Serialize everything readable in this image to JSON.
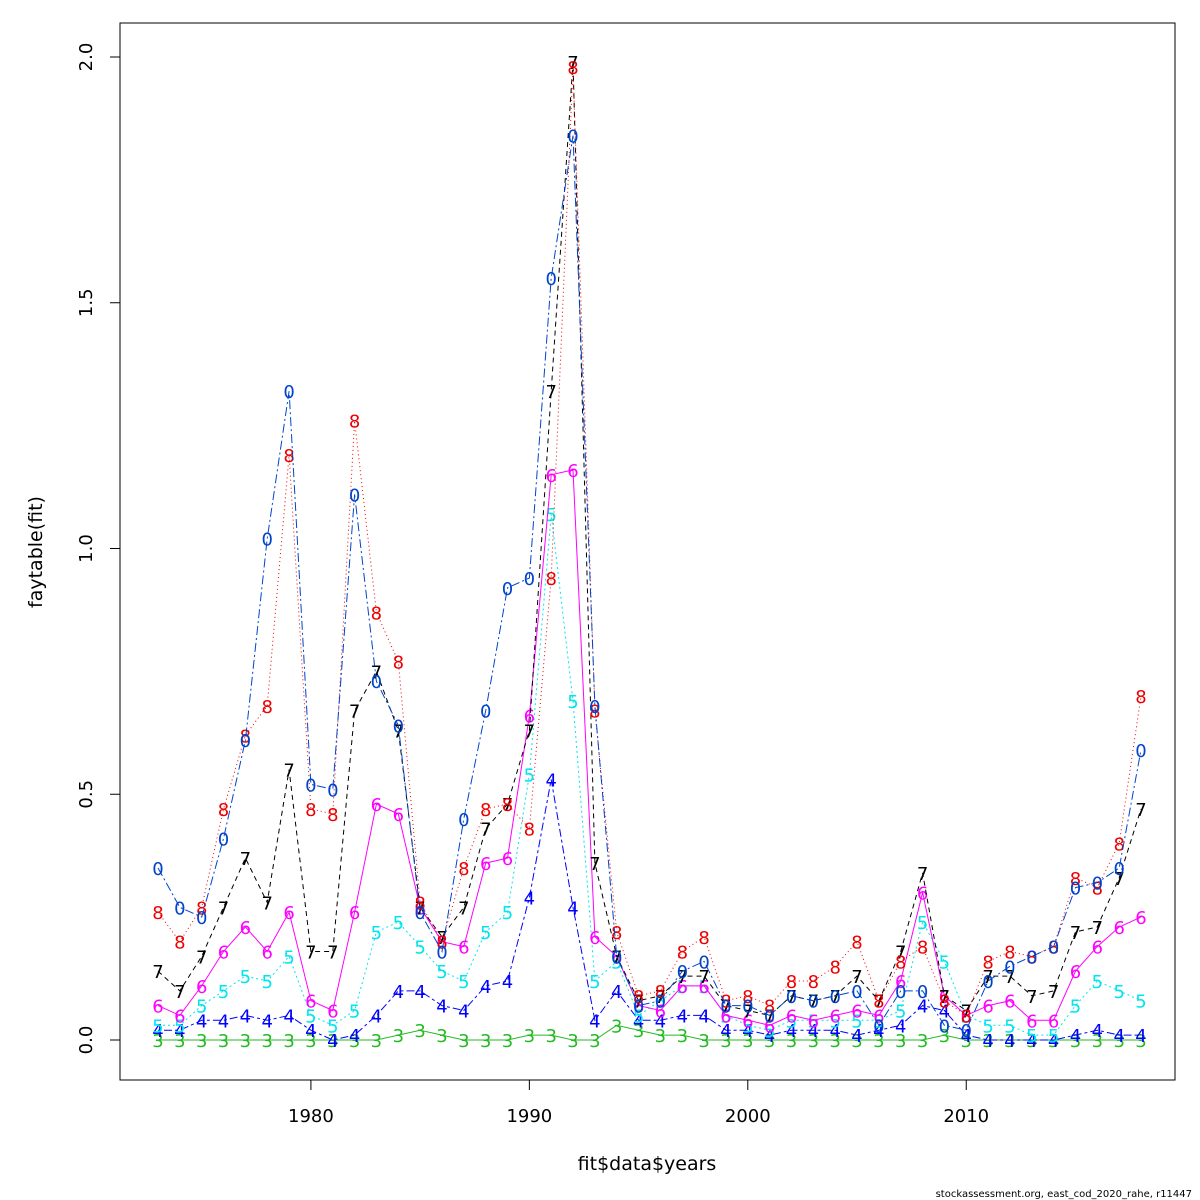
{
  "chart_data": {
    "type": "line",
    "xlabel": "fit$data$years",
    "ylabel": "faytable(fit)",
    "xlim": [
      1973,
      2018
    ],
    "ylim": [
      0,
      2.0
    ],
    "x_ticks": [
      1980,
      1990,
      2000,
      2010
    ],
    "y_ticks": [
      0.0,
      0.5,
      1.0,
      1.5,
      2.0
    ],
    "y_tick_labels": [
      "0.0",
      "0.5",
      "1.0",
      "1.5",
      "2.0"
    ],
    "grid": false,
    "legend": "none",
    "x": [
      1973,
      1974,
      1975,
      1976,
      1977,
      1978,
      1979,
      1980,
      1981,
      1982,
      1983,
      1984,
      1985,
      1986,
      1987,
      1988,
      1989,
      1990,
      1991,
      1992,
      1993,
      1994,
      1995,
      1996,
      1997,
      1998,
      1999,
      2000,
      2001,
      2002,
      2003,
      2004,
      2005,
      2006,
      2007,
      2008,
      2009,
      2010,
      2011,
      2012,
      2013,
      2014,
      2015,
      2016,
      2017,
      2018
    ],
    "series": [
      {
        "label": "3",
        "color": "#22bb22",
        "dash": "",
        "values": [
          0.0,
          0.0,
          0.0,
          0.0,
          0.0,
          0.0,
          0.0,
          0.0,
          0.0,
          0.0,
          0.0,
          0.01,
          0.02,
          0.01,
          0.0,
          0.0,
          0.0,
          0.01,
          0.01,
          0.0,
          0.0,
          0.03,
          0.02,
          0.01,
          0.01,
          0.0,
          0.0,
          0.0,
          0.0,
          0.0,
          0.0,
          0.0,
          0.0,
          0.0,
          0.0,
          0.0,
          0.01,
          0.0,
          0.0,
          0.0,
          0.0,
          0.0,
          0.0,
          0.0,
          0.0,
          0.0
        ]
      },
      {
        "label": "4",
        "color": "#0000ff",
        "dash": "3,3,8,3",
        "values": [
          0.02,
          0.02,
          0.04,
          0.04,
          0.05,
          0.04,
          0.05,
          0.02,
          0.0,
          0.01,
          0.05,
          0.1,
          0.1,
          0.07,
          0.06,
          0.11,
          0.12,
          0.29,
          0.53,
          0.27,
          0.04,
          0.1,
          0.04,
          0.04,
          0.05,
          0.05,
          0.02,
          0.02,
          0.01,
          0.02,
          0.02,
          0.02,
          0.01,
          0.02,
          0.03,
          0.07,
          0.06,
          0.01,
          0.0,
          0.0,
          0.0,
          0.0,
          0.01,
          0.02,
          0.01,
          0.01
        ]
      },
      {
        "label": "5",
        "color": "#00e5ee",
        "dash": "2,3",
        "values": [
          0.03,
          0.03,
          0.07,
          0.1,
          0.13,
          0.12,
          0.17,
          0.05,
          0.03,
          0.06,
          0.22,
          0.24,
          0.19,
          0.14,
          0.12,
          0.22,
          0.26,
          0.54,
          1.07,
          0.69,
          0.12,
          0.16,
          0.05,
          0.08,
          0.11,
          0.11,
          0.05,
          0.03,
          0.02,
          0.04,
          0.04,
          0.04,
          0.04,
          0.04,
          0.06,
          0.24,
          0.16,
          0.05,
          0.03,
          0.03,
          0.01,
          0.01,
          0.07,
          0.12,
          0.1,
          0.08
        ]
      },
      {
        "label": "6",
        "color": "#ff00ff",
        "dash": "",
        "values": [
          0.07,
          0.05,
          0.11,
          0.18,
          0.23,
          0.18,
          0.26,
          0.08,
          0.06,
          0.26,
          0.48,
          0.46,
          0.27,
          0.2,
          0.19,
          0.36,
          0.37,
          0.66,
          1.15,
          1.16,
          0.21,
          0.17,
          0.07,
          0.06,
          0.11,
          0.11,
          0.05,
          0.04,
          0.03,
          0.05,
          0.04,
          0.05,
          0.06,
          0.05,
          0.12,
          0.3,
          0.09,
          0.05,
          0.07,
          0.08,
          0.04,
          0.04,
          0.14,
          0.19,
          0.23,
          0.25
        ]
      },
      {
        "label": "7",
        "color": "#000000",
        "dash": "5,4",
        "values": [
          0.14,
          0.1,
          0.17,
          0.27,
          0.37,
          0.28,
          0.55,
          0.18,
          0.18,
          0.67,
          0.75,
          0.63,
          0.27,
          0.21,
          0.27,
          0.43,
          0.48,
          0.63,
          1.32,
          1.99,
          0.36,
          0.17,
          0.08,
          0.09,
          0.13,
          0.13,
          0.07,
          0.06,
          0.05,
          0.09,
          0.08,
          0.09,
          0.13,
          0.08,
          0.18,
          0.34,
          0.09,
          0.06,
          0.13,
          0.13,
          0.09,
          0.1,
          0.22,
          0.23,
          0.33,
          0.47
        ]
      },
      {
        "label": "8",
        "color": "#ee0000",
        "dash": "1,3",
        "values": [
          0.26,
          0.2,
          0.27,
          0.47,
          0.62,
          0.68,
          1.19,
          0.47,
          0.46,
          1.26,
          0.87,
          0.77,
          0.28,
          0.2,
          0.35,
          0.47,
          0.48,
          0.43,
          0.94,
          1.98,
          0.67,
          0.22,
          0.09,
          0.1,
          0.18,
          0.21,
          0.08,
          0.09,
          0.07,
          0.12,
          0.12,
          0.15,
          0.2,
          0.08,
          0.16,
          0.19,
          0.08,
          0.05,
          0.16,
          0.18,
          0.17,
          0.19,
          0.33,
          0.31,
          0.4,
          0.7
        ]
      },
      {
        "label": "0",
        "color": "#0044cc",
        "dash": "9,3,2,3",
        "values": [
          0.35,
          0.27,
          0.25,
          0.41,
          0.61,
          1.02,
          1.32,
          0.52,
          0.51,
          1.11,
          0.73,
          0.64,
          0.26,
          0.18,
          0.45,
          0.67,
          0.92,
          0.94,
          1.55,
          1.84,
          0.68,
          0.17,
          0.07,
          0.08,
          0.14,
          0.16,
          0.07,
          0.07,
          0.05,
          0.09,
          0.08,
          0.09,
          0.1,
          0.03,
          0.1,
          0.1,
          0.03,
          0.02,
          0.12,
          0.15,
          0.17,
          0.19,
          0.31,
          0.32,
          0.35,
          0.59
        ]
      }
    ]
  },
  "footer": {
    "credit": "stockassessment.org, east_cod_2020_rahe, r11447"
  }
}
